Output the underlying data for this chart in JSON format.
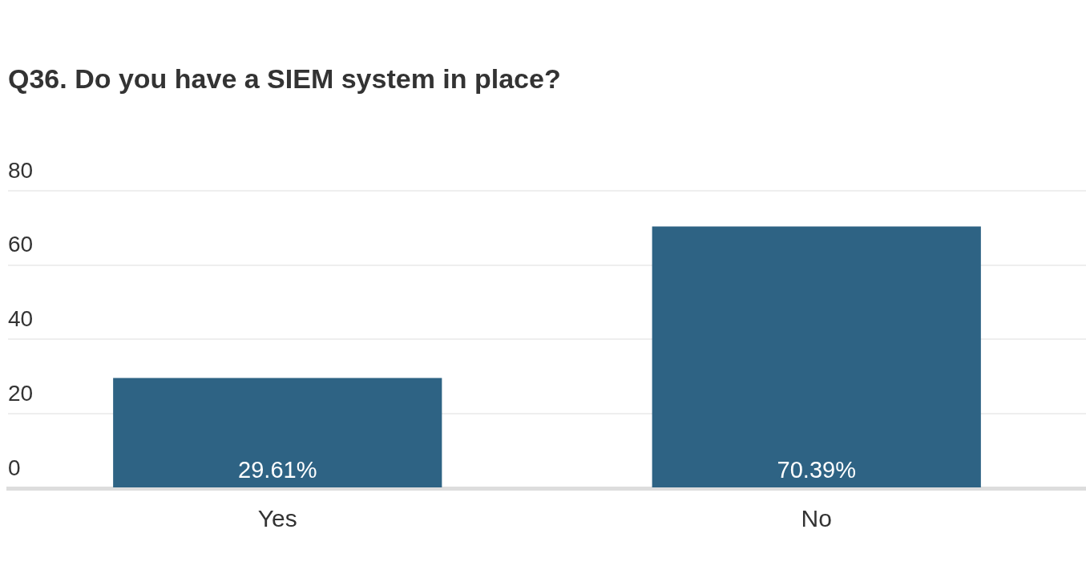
{
  "chart_data": {
    "type": "bar",
    "title": "Q36. Do you have a SIEM system in place?",
    "categories": [
      "Yes",
      "No"
    ],
    "values": [
      29.61,
      70.39
    ],
    "value_labels": [
      "29.61%",
      "70.39%"
    ],
    "color": "#2e6384",
    "ylim": [
      0,
      80
    ],
    "yticks": [
      0,
      20,
      40,
      60,
      80
    ],
    "grid": "y",
    "legend": false
  }
}
